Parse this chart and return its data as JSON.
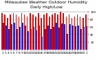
{
  "title": "Milwaukee Weather Outdoor Humidity",
  "subtitle": "Daily High/Low",
  "high_values": [
    97,
    93,
    84,
    93,
    97,
    93,
    88,
    97,
    93,
    88,
    97,
    93,
    88,
    97,
    84,
    93,
    97,
    88,
    93,
    97,
    93,
    100,
    97,
    88,
    93,
    84,
    88,
    93,
    88,
    84,
    93
  ],
  "low_values": [
    72,
    65,
    55,
    68,
    72,
    55,
    60,
    72,
    65,
    50,
    55,
    60,
    52,
    65,
    35,
    55,
    65,
    55,
    60,
    72,
    58,
    70,
    68,
    42,
    68,
    65,
    62,
    65,
    55,
    60,
    62
  ],
  "labels": [
    "2",
    "3",
    "4",
    "5",
    "6",
    "7",
    "8",
    "9",
    "10",
    "11",
    "12",
    "13",
    "14",
    "15",
    "16",
    "17",
    "18",
    "19",
    "20",
    "21",
    "22",
    "23",
    "24",
    "25",
    "26",
    "27",
    "28",
    "29",
    "30",
    "31",
    "1"
  ],
  "high_color": "#dd0000",
  "low_color": "#2222cc",
  "ylim": [
    0,
    100
  ],
  "yticks": [
    20,
    40,
    60,
    80,
    100
  ],
  "background_color": "#ffffff",
  "grid_color": "#aaaaaa",
  "title_fontsize": 4.5,
  "tick_fontsize": 3.2,
  "bar_width": 0.42,
  "legend_fontsize": 3.5
}
